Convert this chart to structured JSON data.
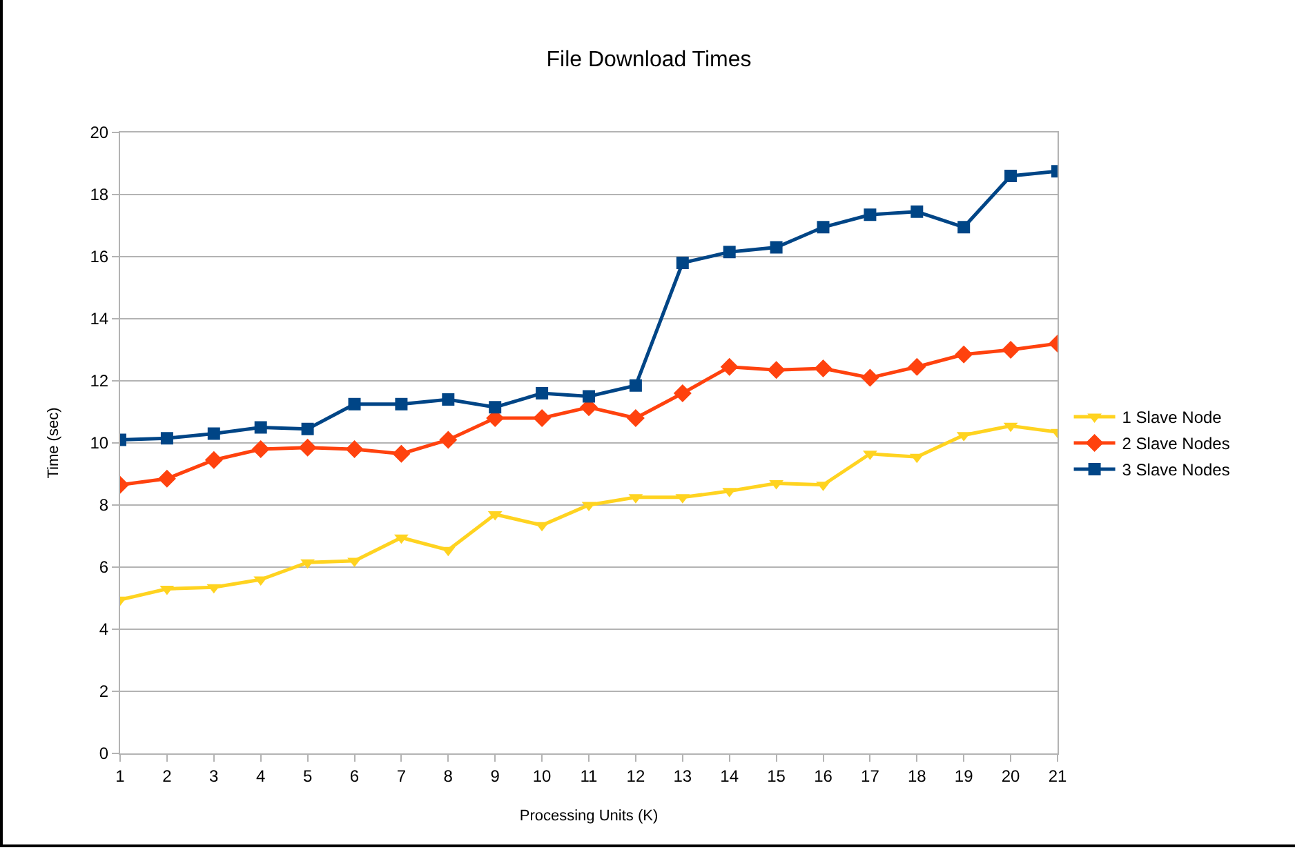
{
  "chart_data": {
    "type": "line",
    "title": "File Download Times",
    "xlabel": "Processing Units (K)",
    "ylabel": "Time (sec)",
    "x": [
      1,
      2,
      3,
      4,
      5,
      6,
      7,
      8,
      9,
      10,
      11,
      12,
      13,
      14,
      15,
      16,
      17,
      18,
      19,
      20,
      21
    ],
    "series": [
      {
        "name": "1 Slave Node",
        "color": "#ffd320",
        "marker": "triangle",
        "values": [
          4.95,
          5.3,
          5.35,
          5.6,
          6.15,
          6.2,
          6.95,
          6.55,
          7.7,
          7.35,
          8.0,
          8.25,
          8.25,
          8.45,
          8.7,
          8.65,
          9.65,
          9.55,
          10.25,
          10.55,
          10.35
        ]
      },
      {
        "name": "2 Slave Nodes",
        "color": "#ff420e",
        "marker": "diamond",
        "values": [
          8.65,
          8.85,
          9.45,
          9.8,
          9.85,
          9.8,
          9.65,
          10.1,
          10.8,
          10.8,
          11.15,
          10.8,
          11.6,
          12.45,
          12.35,
          12.4,
          12.1,
          12.45,
          12.85,
          13.0,
          13.2
        ]
      },
      {
        "name": "3 Slave Nodes",
        "color": "#004586",
        "marker": "square",
        "values": [
          10.1,
          10.15,
          10.3,
          10.5,
          10.45,
          11.25,
          11.25,
          11.4,
          11.15,
          11.6,
          11.5,
          11.85,
          15.8,
          16.15,
          16.3,
          16.95,
          17.35,
          17.45,
          16.95,
          18.6,
          18.75
        ]
      }
    ],
    "xlim": [
      1,
      21
    ],
    "xticks": [
      1,
      2,
      3,
      4,
      5,
      6,
      7,
      8,
      9,
      10,
      11,
      12,
      13,
      14,
      15,
      16,
      17,
      18,
      19,
      20,
      21
    ],
    "ylim": [
      0,
      20
    ],
    "yticks": [
      0,
      2,
      4,
      6,
      8,
      10,
      12,
      14,
      16,
      18,
      20
    ],
    "grid": "y",
    "legend": "right",
    "line_style": "solid"
  }
}
